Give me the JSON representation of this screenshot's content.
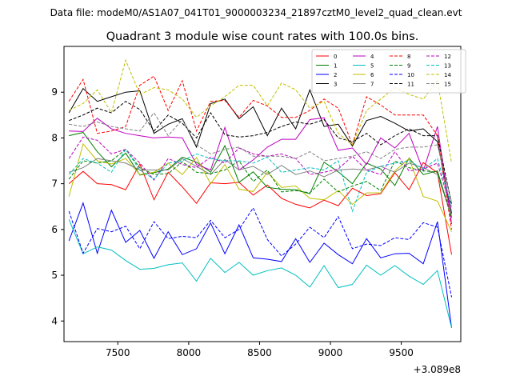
{
  "chart_data": {
    "type": "line",
    "suptitle": "Data file: modeM0/AS1A07_041T01_9000003234_21897cztM0_level2_quad_clean.evt",
    "title": "Quadrant 3 module wise count rates with 100.0s bins.",
    "xlabel": "",
    "ylabel": "",
    "x_offset_label": "+3.089e8",
    "xlim": [
      7120,
      9920
    ],
    "ylim": [
      3.55,
      10.0
    ],
    "x_ticks": [
      7500,
      8000,
      8500,
      9000,
      9500
    ],
    "y_ticks": [
      4,
      5,
      6,
      7,
      8,
      9
    ],
    "x": [
      7155,
      7255,
      7355,
      7455,
      7555,
      7655,
      7755,
      7855,
      7955,
      8055,
      8155,
      8255,
      8355,
      8455,
      8555,
      8655,
      8755,
      8855,
      8955,
      9055,
      9155,
      9255,
      9355,
      9455,
      9555,
      9655,
      9755,
      9855
    ],
    "legend_location": "upper right",
    "series": [
      {
        "name": "0",
        "color": "#ff0000",
        "dash": "solid",
        "values": [
          7.0,
          7.27,
          7.0,
          6.98,
          6.87,
          7.43,
          6.65,
          7.25,
          6.93,
          6.57,
          7.02,
          7.0,
          7.03,
          6.75,
          6.97,
          6.68,
          6.55,
          6.47,
          6.64,
          6.52,
          6.9,
          6.74,
          6.78,
          7.24,
          6.87,
          7.46,
          7.24,
          5.45
        ]
      },
      {
        "name": "1",
        "color": "#008000",
        "dash": "solid",
        "values": [
          8.05,
          8.12,
          7.7,
          7.37,
          7.67,
          7.19,
          7.24,
          7.32,
          7.58,
          7.47,
          7.25,
          7.83,
          7.03,
          7.26,
          6.92,
          6.88,
          6.87,
          6.78,
          7.47,
          7.26,
          7.0,
          7.45,
          7.32,
          6.96,
          7.56,
          7.2,
          7.28,
          6.27
        ]
      },
      {
        "name": "2",
        "color": "#0000ff",
        "dash": "solid",
        "values": [
          5.75,
          6.58,
          5.48,
          6.42,
          5.72,
          5.98,
          5.37,
          5.95,
          5.45,
          5.58,
          6.14,
          5.47,
          6.1,
          5.38,
          5.35,
          5.3,
          5.8,
          5.28,
          5.7,
          5.45,
          5.25,
          5.8,
          5.38,
          5.47,
          5.48,
          5.25,
          6.17,
          3.85
        ]
      },
      {
        "name": "3",
        "color": "#000000",
        "dash": "solid",
        "values": [
          8.55,
          9.08,
          8.8,
          8.9,
          9.0,
          9.03,
          8.1,
          8.3,
          8.42,
          7.8,
          8.75,
          8.85,
          8.42,
          8.68,
          8.05,
          8.65,
          8.2,
          9.05,
          8.25,
          8.3,
          7.82,
          8.38,
          8.47,
          8.32,
          8.15,
          8.2,
          7.92,
          6.35
        ]
      },
      {
        "name": "4",
        "color": "#bf00bf",
        "dash": "solid",
        "values": [
          8.15,
          8.14,
          8.43,
          8.2,
          8.1,
          8.05,
          8.0,
          8.02,
          8.0,
          7.42,
          7.3,
          8.23,
          7.3,
          7.52,
          7.8,
          7.97,
          7.97,
          8.4,
          8.44,
          7.73,
          7.78,
          7.42,
          8.0,
          7.78,
          8.1,
          7.28,
          8.25,
          6.12
        ]
      },
      {
        "name": "5",
        "color": "#00bfbf",
        "dash": "solid",
        "values": [
          6.22,
          5.47,
          5.62,
          5.55,
          5.32,
          5.13,
          5.15,
          5.23,
          5.27,
          4.87,
          5.37,
          5.06,
          5.28,
          5.0,
          5.1,
          5.16,
          5.0,
          4.74,
          5.21,
          4.73,
          4.8,
          5.22,
          5.0,
          5.21,
          4.98,
          4.8,
          5.1,
          3.85
        ]
      },
      {
        "name": "6",
        "color": "#bfbf00",
        "dash": "solid",
        "values": [
          6.72,
          7.87,
          7.5,
          7.43,
          7.55,
          7.2,
          7.25,
          7.45,
          7.2,
          7.57,
          7.0,
          7.42,
          6.88,
          6.83,
          7.25,
          6.92,
          6.95,
          6.68,
          6.65,
          6.85,
          6.55,
          6.8,
          6.8,
          7.28,
          7.55,
          6.72,
          6.62,
          5.95
        ]
      },
      {
        "name": "7",
        "color": "#808080",
        "dash": "solid",
        "values": [
          7.25,
          7.35,
          7.55,
          7.5,
          7.45,
          7.3,
          7.3,
          7.3,
          7.55,
          7.38,
          7.2,
          7.53,
          7.3,
          7.38,
          7.2,
          7.4,
          7.2,
          7.28,
          7.15,
          7.3,
          7.32,
          7.3,
          7.38,
          7.25,
          7.45,
          7.35,
          7.2,
          6.3
        ]
      },
      {
        "name": "8",
        "color": "#ff0000",
        "dash": "dashed",
        "values": [
          8.8,
          9.28,
          8.1,
          8.15,
          8.25,
          9.15,
          9.35,
          8.6,
          9.25,
          8.15,
          8.8,
          8.82,
          8.45,
          8.82,
          8.7,
          8.45,
          8.45,
          8.6,
          8.85,
          8.65,
          7.85,
          8.9,
          8.72,
          8.5,
          8.5,
          8.5,
          8.05,
          6.0
        ]
      },
      {
        "name": "9",
        "color": "#008000",
        "dash": "dashed",
        "values": [
          7.1,
          7.5,
          7.45,
          7.5,
          7.75,
          7.35,
          7.2,
          7.22,
          7.48,
          7.25,
          7.22,
          7.3,
          7.5,
          7.05,
          7.3,
          6.82,
          6.85,
          6.8,
          7.1,
          6.82,
          6.95,
          7.05,
          6.85,
          7.5,
          7.35,
          7.28,
          7.25,
          6.25
        ]
      },
      {
        "name": "10",
        "color": "#0000ff",
        "dash": "dashed",
        "values": [
          6.4,
          5.48,
          6.02,
          5.95,
          6.07,
          5.58,
          6.17,
          5.8,
          5.85,
          5.82,
          6.2,
          5.82,
          6.0,
          6.47,
          5.78,
          5.42,
          5.68,
          6.05,
          5.82,
          6.28,
          5.58,
          5.68,
          5.65,
          5.82,
          5.78,
          6.15,
          6.05,
          4.52
        ]
      },
      {
        "name": "11",
        "color": "#000000",
        "dash": "dashed",
        "values": [
          8.38,
          8.5,
          8.65,
          8.55,
          8.8,
          8.62,
          8.15,
          8.5,
          8.32,
          8.0,
          8.55,
          8.07,
          8.02,
          8.05,
          8.12,
          8.25,
          8.35,
          8.3,
          8.4,
          8.0,
          7.92,
          8.1,
          7.85,
          8.05,
          8.2,
          8.05,
          8.05,
          6.55
        ]
      },
      {
        "name": "12",
        "color": "#bf00bf",
        "dash": "dashed",
        "values": [
          7.55,
          8.02,
          7.95,
          7.65,
          7.75,
          7.45,
          7.08,
          7.55,
          7.42,
          7.35,
          7.58,
          7.45,
          7.78,
          7.65,
          7.6,
          7.65,
          7.55,
          7.2,
          7.25,
          7.32,
          7.6,
          7.3,
          7.2,
          7.7,
          7.28,
          7.32,
          7.45,
          6.42
        ]
      },
      {
        "name": "13",
        "color": "#00bfbf",
        "dash": "dashed",
        "values": [
          7.2,
          7.55,
          7.45,
          7.25,
          7.75,
          7.3,
          7.1,
          7.45,
          7.5,
          7.65,
          7.55,
          7.5,
          7.5,
          7.45,
          7.58,
          7.25,
          7.3,
          7.35,
          7.3,
          7.5,
          6.4,
          7.25,
          7.38,
          7.45,
          7.5,
          7.32,
          7.55,
          6.5
        ]
      },
      {
        "name": "14",
        "color": "#bfbf00",
        "dash": "dashed",
        "values": [
          8.6,
          8.75,
          9.05,
          8.55,
          9.7,
          8.95,
          9.1,
          9.05,
          8.85,
          8.45,
          8.7,
          8.9,
          9.15,
          9.15,
          8.7,
          9.2,
          9.05,
          8.65,
          8.8,
          8.1,
          7.85,
          8.6,
          8.85,
          9.1,
          8.95,
          8.85,
          9.25,
          7.45
        ]
      },
      {
        "name": "15",
        "color": "#808080",
        "dash": "dashed",
        "values": [
          8.3,
          8.25,
          8.35,
          8.25,
          8.2,
          8.15,
          8.55,
          8.05,
          8.4,
          7.85,
          7.65,
          7.75,
          7.8,
          7.6,
          7.6,
          7.6,
          7.55,
          7.7,
          7.5,
          7.55,
          7.6,
          7.7,
          7.55,
          7.75,
          7.8,
          7.8,
          7.85,
          6.6
        ]
      }
    ]
  }
}
